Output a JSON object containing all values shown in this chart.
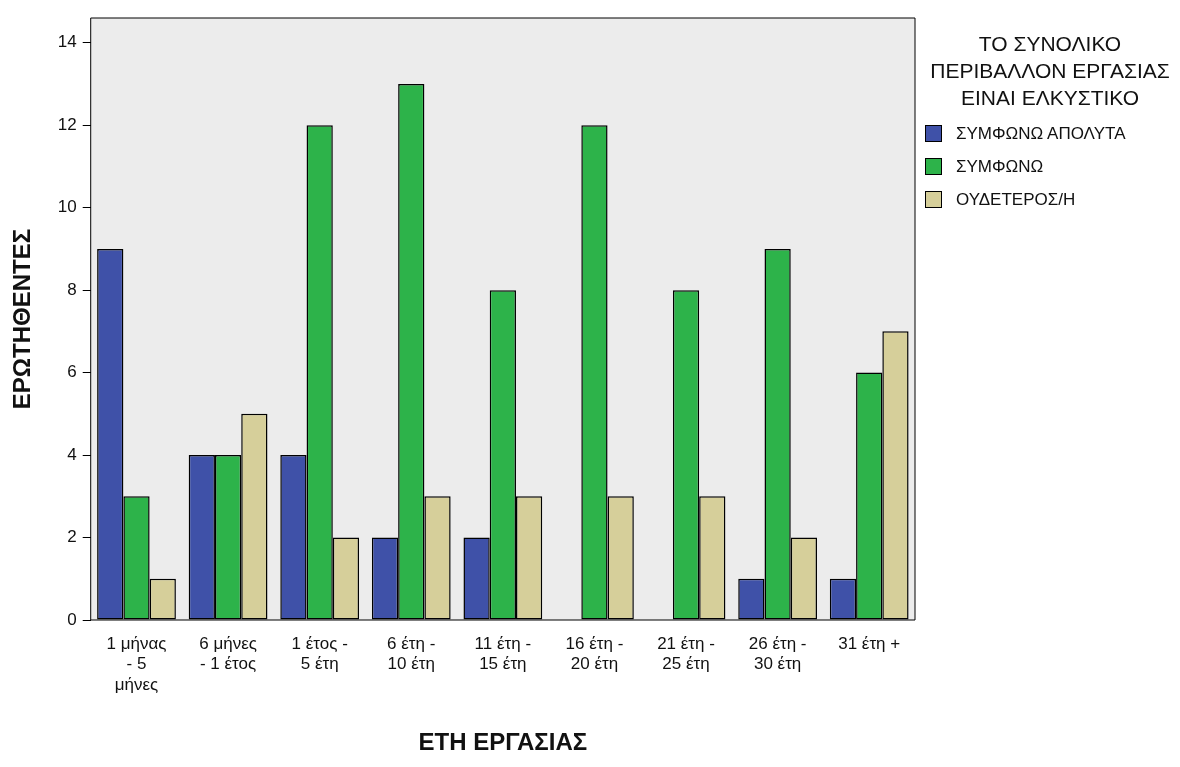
{
  "chart_data": {
    "type": "bar",
    "xlabel": "ΕΤΗ ΕΡΓΑΣΙΑΣ",
    "ylabel": "ΕΡΩΤΗΘΕΝΤΕΣ",
    "legend_title": "ΤΟ ΣΥΝΟΛΙΚΟ ΠΕΡΙΒΑΛΛΟΝ ΕΡΓΑΣΙΑΣ ΕΙΝΑΙ ΕΛΚΥΣΤΙΚΟ",
    "categories": [
      "1 μήνας - 5 μήνες",
      "6 μήνες - 1 έτος",
      "1 έτος - 5 έτη",
      "6 έτη - 10 έτη",
      "11 έτη - 15 έτη",
      "16 έτη - 20 έτη",
      "21 έτη - 25 έτη",
      "26 έτη - 30 έτη",
      "31 έτη +"
    ],
    "series": [
      {
        "name": "ΣΥΜΦΩΝΩ ΑΠΟΛΥΤΑ",
        "color": "#3f51a8",
        "values": [
          9,
          4,
          4,
          2,
          2,
          null,
          null,
          1,
          1
        ]
      },
      {
        "name": "ΣΥΜΦΩΝΩ",
        "color": "#2db34a",
        "values": [
          3,
          4,
          12,
          13,
          8,
          12,
          8,
          9,
          6
        ]
      },
      {
        "name": "ΟΥΔΕΤΕΡΟΣ/Η",
        "color": "#d6cf9a",
        "values": [
          1,
          5,
          2,
          3,
          3,
          3,
          3,
          2,
          7
        ]
      }
    ],
    "ylim": [
      0,
      14.6
    ],
    "yticks": [
      0,
      2,
      4,
      6,
      8,
      10,
      12,
      14
    ],
    "grid": false,
    "legend": "right"
  }
}
